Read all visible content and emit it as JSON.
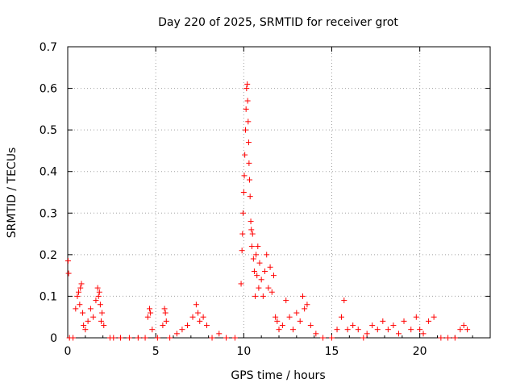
{
  "chart_data": {
    "type": "scatter",
    "title": "Day 220 of 2025, SRMTID for receiver grot",
    "xlabel": "GPS time / hours",
    "ylabel": "SRMTID / TECUs",
    "xlim": [
      0,
      24
    ],
    "ylim": [
      0,
      0.7
    ],
    "x_ticks": [
      0,
      5,
      10,
      15,
      20
    ],
    "x_tick_labels": [
      "0",
      "5",
      "10",
      "15",
      "20"
    ],
    "y_ticks": [
      0,
      0.1,
      0.2,
      0.3,
      0.4,
      0.5,
      0.6,
      0.7
    ],
    "y_tick_labels": [
      "0",
      "0.1",
      "0.2",
      "0.3",
      "0.4",
      "0.5",
      "0.6",
      "0.7"
    ],
    "grid": true,
    "marker": "+",
    "marker_color": "#ff0000",
    "series": [
      {
        "name": "SRMTID",
        "x": [
          0.02,
          0.05,
          0.1,
          0.3,
          0.45,
          0.55,
          0.62,
          0.68,
          0.72,
          0.78,
          0.85,
          0.9,
          1.0,
          1.15,
          1.3,
          1.45,
          1.6,
          1.7,
          1.75,
          1.8,
          1.85,
          1.9,
          1.95,
          2.05,
          2.4,
          2.6,
          3.0,
          3.5,
          4.0,
          4.4,
          4.55,
          4.65,
          4.7,
          4.8,
          5.1,
          5.4,
          5.5,
          5.55,
          5.6,
          5.8,
          6.2,
          6.5,
          6.8,
          7.1,
          7.3,
          7.4,
          7.5,
          7.7,
          7.9,
          8.2,
          8.6,
          9.0,
          9.5,
          9.85,
          9.9,
          9.93,
          9.96,
          10.0,
          10.03,
          10.06,
          10.1,
          10.13,
          10.16,
          10.2,
          10.22,
          10.25,
          10.28,
          10.3,
          10.33,
          10.36,
          10.4,
          10.43,
          10.46,
          10.5,
          10.55,
          10.6,
          10.65,
          10.7,
          10.75,
          10.8,
          10.85,
          10.9,
          11.0,
          11.1,
          11.2,
          11.3,
          11.4,
          11.5,
          11.6,
          11.7,
          11.8,
          11.9,
          12.0,
          12.2,
          12.4,
          12.6,
          12.8,
          13.0,
          13.2,
          13.35,
          13.45,
          13.6,
          13.8,
          14.1,
          14.5,
          15.0,
          15.3,
          15.55,
          15.7,
          15.9,
          16.2,
          16.5,
          16.8,
          17.0,
          17.3,
          17.6,
          17.9,
          18.2,
          18.5,
          18.8,
          19.1,
          19.5,
          19.8,
          20.0,
          20.2,
          20.5,
          20.8,
          21.2,
          21.6,
          22.0,
          22.3,
          22.5,
          22.7
        ],
        "y": [
          0.185,
          0.155,
          0.0,
          0.0,
          0.07,
          0.1,
          0.11,
          0.08,
          0.12,
          0.13,
          0.06,
          0.03,
          0.02,
          0.04,
          0.07,
          0.05,
          0.09,
          0.12,
          0.1,
          0.11,
          0.08,
          0.04,
          0.06,
          0.03,
          0.0,
          0.0,
          0.0,
          0.0,
          0.0,
          0.0,
          0.05,
          0.07,
          0.06,
          0.02,
          0.0,
          0.03,
          0.07,
          0.06,
          0.04,
          0.0,
          0.01,
          0.02,
          0.03,
          0.05,
          0.08,
          0.06,
          0.04,
          0.05,
          0.03,
          0.0,
          0.01,
          0.0,
          0.0,
          0.13,
          0.21,
          0.25,
          0.3,
          0.35,
          0.39,
          0.44,
          0.5,
          0.55,
          0.6,
          0.61,
          0.57,
          0.52,
          0.47,
          0.42,
          0.38,
          0.34,
          0.28,
          0.26,
          0.22,
          0.25,
          0.19,
          0.16,
          0.1,
          0.2,
          0.15,
          0.22,
          0.12,
          0.18,
          0.14,
          0.1,
          0.16,
          0.2,
          0.12,
          0.17,
          0.11,
          0.15,
          0.05,
          0.04,
          0.02,
          0.03,
          0.09,
          0.05,
          0.02,
          0.06,
          0.04,
          0.1,
          0.07,
          0.08,
          0.03,
          0.01,
          0.0,
          0.0,
          0.02,
          0.05,
          0.09,
          0.02,
          0.03,
          0.02,
          0.0,
          0.01,
          0.03,
          0.02,
          0.04,
          0.02,
          0.03,
          0.01,
          0.04,
          0.02,
          0.05,
          0.02,
          0.01,
          0.04,
          0.05,
          0.0,
          0.0,
          0.0,
          0.02,
          0.03,
          0.02
        ]
      }
    ]
  }
}
